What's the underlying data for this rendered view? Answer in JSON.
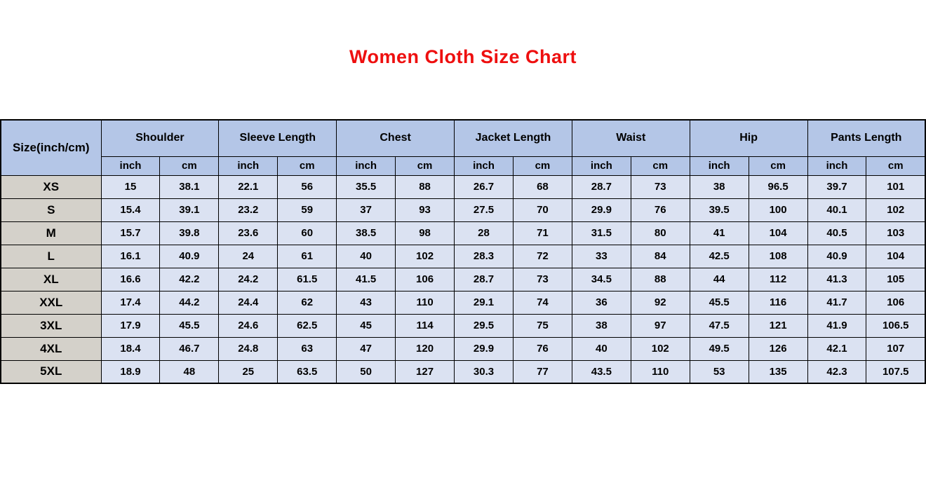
{
  "title": {
    "text": "Women Cloth Size Chart",
    "color": "#ee0f0f"
  },
  "colors": {
    "header_bg": "#b4c6e7",
    "cell_bg": "#dbe2f2",
    "size_col_bg": "#d4d1ca",
    "border": "#000000"
  },
  "chart_data": {
    "type": "table",
    "title": "Women Cloth Size Chart",
    "size_column_header": "Size(inch/cm)",
    "measure_groups": [
      "Shoulder",
      "Sleeve Length",
      "Chest",
      "Jacket Length",
      "Waist",
      "Hip",
      "Pants Length"
    ],
    "unit_labels": [
      "inch",
      "cm"
    ],
    "rows": [
      {
        "size": "XS",
        "values": [
          15,
          38.1,
          22.1,
          56,
          35.5,
          88,
          26.7,
          68,
          28.7,
          73,
          38,
          96.5,
          39.7,
          101
        ]
      },
      {
        "size": "S",
        "values": [
          15.4,
          39.1,
          23.2,
          59,
          37,
          93,
          27.5,
          70,
          29.9,
          76,
          39.5,
          100,
          40.1,
          102
        ]
      },
      {
        "size": "M",
        "values": [
          15.7,
          39.8,
          23.6,
          60,
          38.5,
          98,
          28,
          71,
          31.5,
          80,
          41,
          104,
          40.5,
          103
        ]
      },
      {
        "size": "L",
        "values": [
          16.1,
          40.9,
          24,
          61,
          40,
          102,
          28.3,
          72,
          33,
          84,
          42.5,
          108,
          40.9,
          104
        ]
      },
      {
        "size": "XL",
        "values": [
          16.6,
          42.2,
          24.2,
          61.5,
          41.5,
          106,
          28.7,
          73,
          34.5,
          88,
          44,
          112,
          41.3,
          105
        ]
      },
      {
        "size": "XXL",
        "values": [
          17.4,
          44.2,
          24.4,
          62,
          43,
          110,
          29.1,
          74,
          36,
          92,
          45.5,
          116,
          41.7,
          106
        ]
      },
      {
        "size": "3XL",
        "values": [
          17.9,
          45.5,
          24.6,
          62.5,
          45,
          114,
          29.5,
          75,
          38,
          97,
          47.5,
          121,
          41.9,
          106.5
        ]
      },
      {
        "size": "4XL",
        "values": [
          18.4,
          46.7,
          24.8,
          63,
          47,
          120,
          29.9,
          76,
          40,
          102,
          49.5,
          126,
          42.1,
          107
        ]
      },
      {
        "size": "5XL",
        "values": [
          18.9,
          48,
          25,
          63.5,
          50,
          127,
          30.3,
          77,
          43.5,
          110,
          53,
          135,
          42.3,
          107.5
        ]
      }
    ]
  }
}
